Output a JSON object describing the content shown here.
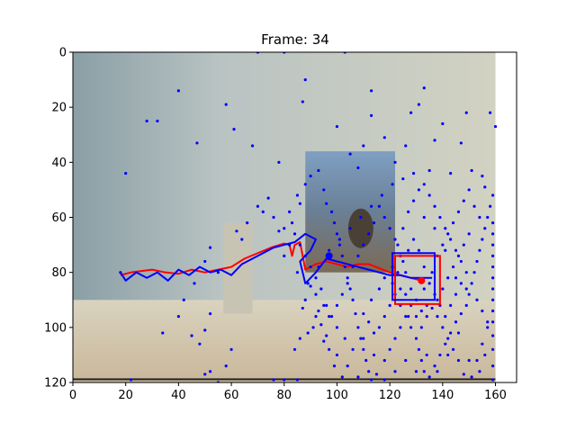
{
  "chart_data": {
    "type": "scatter",
    "title": "Frame: 34",
    "xlabel": "",
    "ylabel": "",
    "xlim": [
      0,
      168
    ],
    "ylim": [
      120,
      0
    ],
    "y_inverted": true,
    "image_extent": {
      "x": [
        0,
        160
      ],
      "y": [
        0,
        120
      ]
    },
    "xticks": [
      0,
      20,
      40,
      60,
      80,
      100,
      120,
      140,
      160
    ],
    "yticks": [
      0,
      20,
      40,
      60,
      80,
      100,
      120
    ],
    "grid": false,
    "legend": "none",
    "colors": {
      "particles": "#0000ff",
      "estimate": "#ff0000",
      "truth": "#0000ff",
      "axes": "#000000"
    },
    "series": [
      {
        "kind": "trajectory-estimate",
        "color": "#ff0000",
        "x": [
          18,
          22,
          26,
          30,
          35,
          40,
          45,
          50,
          55,
          60,
          65,
          70,
          75,
          80,
          82,
          83,
          84,
          86,
          88,
          92,
          96,
          100,
          104,
          108,
          112,
          116,
          120,
          124,
          128,
          132
        ],
        "y": [
          81,
          80,
          79.5,
          79,
          80,
          80.5,
          79,
          80,
          79,
          78,
          75,
          73,
          71,
          69.5,
          70,
          74,
          70,
          69,
          79,
          77,
          76,
          77,
          78,
          77,
          77,
          78.5,
          80,
          81,
          82,
          83
        ]
      },
      {
        "kind": "trajectory-truth",
        "color": "#0000ff",
        "x": [
          18,
          20,
          24,
          28,
          32,
          36,
          40,
          44,
          48,
          52,
          56,
          60,
          64,
          68,
          72,
          76,
          80,
          84,
          88,
          92,
          90,
          86,
          88,
          92,
          96,
          100,
          104,
          108,
          112,
          116,
          120,
          124,
          128,
          132,
          136
        ],
        "y": [
          80,
          83,
          80,
          82,
          80,
          83,
          79,
          81,
          78,
          80,
          79,
          81,
          77,
          75,
          73,
          71,
          70,
          69,
          66,
          68,
          72,
          76,
          84,
          80,
          75,
          76,
          77,
          78,
          79,
          80,
          81,
          81,
          82,
          82,
          82
        ]
      }
    ],
    "boxes": [
      {
        "name": "estimate-box",
        "color": "#ff0000",
        "x": [
          122,
          139
        ],
        "y": [
          74,
          91.5
        ]
      },
      {
        "name": "truth-box",
        "color": "#0000ff",
        "x": [
          121,
          137
        ],
        "y": [
          73,
          90
        ]
      }
    ],
    "markers": [
      {
        "name": "estimate-center",
        "color": "#ff0000",
        "x": 132,
        "y": 83
      },
      {
        "name": "truth-center",
        "color": "#0000ff",
        "x": 97,
        "y": 74
      }
    ],
    "particle_points": [
      [
        18,
        80
      ],
      [
        20,
        44
      ],
      [
        28,
        25
      ],
      [
        32,
        25
      ],
      [
        40,
        14
      ],
      [
        47,
        33
      ],
      [
        55,
        80
      ],
      [
        58,
        19
      ],
      [
        61,
        28
      ],
      [
        68,
        34
      ],
      [
        70,
        0
      ],
      [
        78,
        40
      ],
      [
        80,
        0
      ],
      [
        76,
        119
      ],
      [
        80,
        119
      ],
      [
        85,
        119
      ],
      [
        87,
        18
      ],
      [
        88,
        10
      ],
      [
        100,
        27
      ],
      [
        103,
        0
      ],
      [
        105,
        37
      ],
      [
        108,
        42
      ],
      [
        110,
        34
      ],
      [
        113,
        14
      ],
      [
        113,
        23
      ],
      [
        118,
        31
      ],
      [
        122,
        40
      ],
      [
        126,
        34
      ],
      [
        128,
        22
      ],
      [
        131,
        19
      ],
      [
        133,
        13
      ],
      [
        135,
        43
      ],
      [
        137,
        32
      ],
      [
        140,
        26
      ],
      [
        143,
        44
      ],
      [
        147,
        33
      ],
      [
        149,
        22
      ],
      [
        151,
        43
      ],
      [
        155,
        45
      ],
      [
        156,
        49
      ],
      [
        158,
        22
      ],
      [
        160,
        27
      ],
      [
        22,
        119
      ],
      [
        50,
        117
      ],
      [
        52,
        116
      ],
      [
        55,
        120
      ],
      [
        58,
        114
      ],
      [
        60,
        108
      ],
      [
        48,
        106
      ],
      [
        45,
        103
      ],
      [
        50,
        101
      ],
      [
        52,
        95
      ],
      [
        40,
        96
      ],
      [
        34,
        102
      ],
      [
        42,
        90
      ],
      [
        46,
        84
      ],
      [
        50,
        76
      ],
      [
        52,
        71
      ],
      [
        62,
        65
      ],
      [
        64,
        68
      ],
      [
        66,
        62
      ],
      [
        70,
        56
      ],
      [
        72,
        58
      ],
      [
        74,
        53
      ],
      [
        76,
        60
      ],
      [
        78,
        65
      ],
      [
        80,
        64
      ],
      [
        82,
        58
      ],
      [
        83,
        62
      ],
      [
        85,
        52
      ],
      [
        86,
        55
      ],
      [
        88,
        48
      ],
      [
        90,
        45
      ],
      [
        93,
        43
      ],
      [
        95,
        50
      ],
      [
        96,
        55
      ],
      [
        98,
        58
      ],
      [
        99,
        62
      ],
      [
        100,
        66
      ],
      [
        101,
        70
      ],
      [
        102,
        74
      ],
      [
        103,
        78
      ],
      [
        104,
        82
      ],
      [
        105,
        86
      ],
      [
        106,
        90
      ],
      [
        107,
        95
      ],
      [
        108,
        100
      ],
      [
        109,
        104
      ],
      [
        110,
        108
      ],
      [
        111,
        112
      ],
      [
        112,
        116
      ],
      [
        113,
        119
      ],
      [
        102,
        118
      ],
      [
        99,
        114
      ],
      [
        97,
        108
      ],
      [
        96,
        103
      ],
      [
        94,
        99
      ],
      [
        93,
        94
      ],
      [
        92,
        88
      ],
      [
        90,
        85
      ],
      [
        88,
        90
      ],
      [
        87,
        93
      ],
      [
        91,
        100
      ],
      [
        95,
        105
      ],
      [
        100,
        110
      ],
      [
        104,
        114
      ],
      [
        108,
        118
      ],
      [
        115,
        117
      ],
      [
        118,
        112
      ],
      [
        120,
        108
      ],
      [
        122,
        104
      ],
      [
        124,
        100
      ],
      [
        126,
        96
      ],
      [
        128,
        100
      ],
      [
        130,
        104
      ],
      [
        131,
        108
      ],
      [
        132,
        112
      ],
      [
        133,
        116
      ],
      [
        135,
        118
      ],
      [
        137,
        114
      ],
      [
        139,
        110
      ],
      [
        141,
        106
      ],
      [
        143,
        102
      ],
      [
        145,
        98
      ],
      [
        147,
        95
      ],
      [
        149,
        92
      ],
      [
        150,
        88
      ],
      [
        151,
        84
      ],
      [
        152,
        80
      ],
      [
        153,
        76
      ],
      [
        154,
        72
      ],
      [
        155,
        68
      ],
      [
        156,
        64
      ],
      [
        157,
        60
      ],
      [
        158,
        56
      ],
      [
        159,
        52
      ],
      [
        159,
        62
      ],
      [
        159,
        66
      ],
      [
        159,
        70
      ],
      [
        159,
        74
      ],
      [
        159,
        78
      ],
      [
        159,
        82
      ],
      [
        159,
        86
      ],
      [
        159,
        90
      ],
      [
        159,
        94
      ],
      [
        159,
        98
      ],
      [
        159,
        103
      ],
      [
        159,
        108
      ],
      [
        159,
        114
      ],
      [
        159,
        119
      ],
      [
        157,
        100
      ],
      [
        155,
        106
      ],
      [
        153,
        112
      ],
      [
        151,
        118
      ],
      [
        148,
        117
      ],
      [
        146,
        112
      ],
      [
        144,
        108
      ],
      [
        142,
        104
      ],
      [
        140,
        100
      ],
      [
        138,
        96
      ],
      [
        136,
        93
      ],
      [
        134,
        96
      ],
      [
        132,
        100
      ],
      [
        130,
        96
      ],
      [
        128,
        92
      ],
      [
        126,
        88
      ],
      [
        124,
        86
      ],
      [
        122,
        88
      ],
      [
        120,
        92
      ],
      [
        118,
        96
      ],
      [
        116,
        100
      ],
      [
        114,
        102
      ],
      [
        112,
        98
      ],
      [
        110,
        95
      ],
      [
        113,
        90
      ],
      [
        116,
        86
      ],
      [
        118,
        82
      ],
      [
        121,
        78
      ],
      [
        123,
        70
      ],
      [
        125,
        64
      ],
      [
        127,
        58
      ],
      [
        129,
        54
      ],
      [
        131,
        50
      ],
      [
        133,
        48
      ],
      [
        135,
        52
      ],
      [
        137,
        56
      ],
      [
        139,
        60
      ],
      [
        141,
        64
      ],
      [
        143,
        68
      ],
      [
        145,
        72
      ],
      [
        147,
        76
      ],
      [
        149,
        80
      ],
      [
        147,
        84
      ],
      [
        145,
        88
      ],
      [
        143,
        92
      ],
      [
        141,
        96
      ],
      [
        139,
        92
      ],
      [
        137,
        88
      ],
      [
        135,
        84
      ],
      [
        133,
        78
      ],
      [
        131,
        72
      ],
      [
        129,
        68
      ],
      [
        127,
        72
      ],
      [
        125,
        76
      ],
      [
        123,
        80
      ],
      [
        121,
        84
      ],
      [
        124,
        92
      ],
      [
        127,
        96
      ],
      [
        130,
        90
      ],
      [
        133,
        86
      ],
      [
        136,
        80
      ],
      [
        138,
        74
      ],
      [
        140,
        70
      ],
      [
        142,
        66
      ],
      [
        144,
        62
      ],
      [
        146,
        58
      ],
      [
        148,
        54
      ],
      [
        150,
        50
      ],
      [
        152,
        56
      ],
      [
        154,
        60
      ],
      [
        150,
        66
      ],
      [
        148,
        70
      ],
      [
        146,
        74
      ],
      [
        144,
        78
      ],
      [
        142,
        82
      ],
      [
        140,
        86
      ],
      [
        138,
        90
      ],
      [
        134,
        92
      ],
      [
        132,
        94
      ],
      [
        128,
        86
      ],
      [
        126,
        80
      ],
      [
        124,
        74
      ],
      [
        122,
        68
      ],
      [
        120,
        64
      ],
      [
        118,
        60
      ],
      [
        116,
        56
      ],
      [
        114,
        62
      ],
      [
        112,
        66
      ],
      [
        110,
        70
      ],
      [
        108,
        74
      ],
      [
        106,
        78
      ],
      [
        104,
        84
      ],
      [
        102,
        88
      ],
      [
        100,
        92
      ],
      [
        98,
        96
      ],
      [
        96,
        92
      ],
      [
        94,
        86
      ],
      [
        92,
        82
      ],
      [
        90,
        78
      ],
      [
        88,
        74
      ],
      [
        86,
        70
      ],
      [
        84,
        66
      ],
      [
        82,
        70
      ],
      [
        80,
        74
      ],
      [
        85,
        80
      ],
      [
        89,
        84
      ],
      [
        93,
        78
      ],
      [
        97,
        72
      ],
      [
        101,
        68
      ],
      [
        105,
        64
      ],
      [
        109,
        60
      ],
      [
        113,
        56
      ],
      [
        117,
        52
      ],
      [
        121,
        48
      ],
      [
        125,
        46
      ],
      [
        129,
        44
      ],
      [
        133,
        60
      ],
      [
        137,
        64
      ],
      [
        141,
        72
      ],
      [
        145,
        82
      ],
      [
        149,
        86
      ],
      [
        153,
        90
      ],
      [
        155,
        94
      ],
      [
        157,
        98
      ],
      [
        156,
        110
      ],
      [
        154,
        116
      ],
      [
        150,
        112
      ],
      [
        146,
        102
      ],
      [
        142,
        110
      ],
      [
        138,
        116
      ],
      [
        134,
        110
      ],
      [
        130,
        116
      ],
      [
        126,
        112
      ],
      [
        122,
        116
      ],
      [
        118,
        119
      ],
      [
        114,
        110
      ],
      [
        110,
        104
      ],
      [
        106,
        108
      ],
      [
        103,
        104
      ],
      [
        100,
        100
      ],
      [
        97,
        96
      ],
      [
        95,
        92
      ],
      [
        92,
        96
      ],
      [
        89,
        102
      ],
      [
        86,
        104
      ],
      [
        84,
        108
      ]
    ]
  }
}
